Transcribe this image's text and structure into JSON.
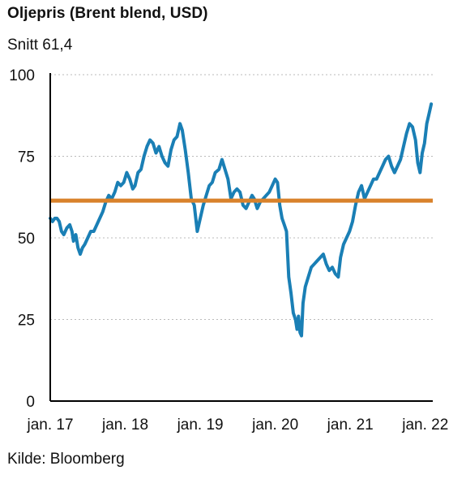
{
  "header": {
    "title": "Oljepris (Brent blend, USD)",
    "subtitle": "Snitt 61,4"
  },
  "footer": {
    "source": "Kilde: Bloomberg"
  },
  "colors": {
    "line": "#1a7fb5",
    "average": "#d9822b",
    "grid": "#bbbbbb",
    "axis": "#000000"
  },
  "chart_data": {
    "type": "line",
    "title": "Oljepris (Brent blend, USD)",
    "subtitle": "Snitt 61,4",
    "xlabel": "",
    "ylabel": "",
    "ylim": [
      0,
      100
    ],
    "xlim": [
      2017.0,
      2022.1
    ],
    "y_ticks": [
      0,
      25,
      50,
      75,
      100
    ],
    "x_ticks": [
      {
        "x": 2017.0,
        "label": "jan. 17"
      },
      {
        "x": 2018.0,
        "label": "jan. 18"
      },
      {
        "x": 2019.0,
        "label": "jan. 19"
      },
      {
        "x": 2020.0,
        "label": "jan. 20"
      },
      {
        "x": 2021.0,
        "label": "jan. 21"
      },
      {
        "x": 2022.0,
        "label": "jan. 22"
      }
    ],
    "grid": "horizontal dotted",
    "average": {
      "value": 61.4
    },
    "series": [
      {
        "points": [
          [
            2017.0,
            56
          ],
          [
            2017.03,
            55
          ],
          [
            2017.06,
            56
          ],
          [
            2017.09,
            56
          ],
          [
            2017.12,
            55
          ],
          [
            2017.15,
            52
          ],
          [
            2017.18,
            51
          ],
          [
            2017.22,
            53
          ],
          [
            2017.26,
            54
          ],
          [
            2017.29,
            52
          ],
          [
            2017.31,
            49
          ],
          [
            2017.34,
            51
          ],
          [
            2017.37,
            47
          ],
          [
            2017.4,
            45
          ],
          [
            2017.43,
            47
          ],
          [
            2017.46,
            48
          ],
          [
            2017.5,
            50
          ],
          [
            2017.54,
            52
          ],
          [
            2017.58,
            52
          ],
          [
            2017.62,
            54
          ],
          [
            2017.66,
            56
          ],
          [
            2017.7,
            58
          ],
          [
            2017.74,
            61
          ],
          [
            2017.78,
            63
          ],
          [
            2017.82,
            62
          ],
          [
            2017.86,
            64
          ],
          [
            2017.9,
            67
          ],
          [
            2017.94,
            66
          ],
          [
            2017.98,
            67
          ],
          [
            2018.02,
            70
          ],
          [
            2018.06,
            68
          ],
          [
            2018.1,
            65
          ],
          [
            2018.13,
            66
          ],
          [
            2018.17,
            70
          ],
          [
            2018.21,
            71
          ],
          [
            2018.25,
            75
          ],
          [
            2018.29,
            78
          ],
          [
            2018.33,
            80
          ],
          [
            2018.37,
            79
          ],
          [
            2018.41,
            76
          ],
          [
            2018.45,
            78
          ],
          [
            2018.49,
            75
          ],
          [
            2018.53,
            73
          ],
          [
            2018.57,
            72
          ],
          [
            2018.61,
            77
          ],
          [
            2018.65,
            80
          ],
          [
            2018.69,
            81
          ],
          [
            2018.73,
            85
          ],
          [
            2018.76,
            83
          ],
          [
            2018.8,
            77
          ],
          [
            2018.84,
            70
          ],
          [
            2018.88,
            62
          ],
          [
            2018.92,
            60
          ],
          [
            2018.96,
            52
          ],
          [
            2019.0,
            56
          ],
          [
            2019.04,
            60
          ],
          [
            2019.08,
            63
          ],
          [
            2019.12,
            66
          ],
          [
            2019.16,
            67
          ],
          [
            2019.2,
            70
          ],
          [
            2019.25,
            71
          ],
          [
            2019.29,
            74
          ],
          [
            2019.33,
            71
          ],
          [
            2019.37,
            68
          ],
          [
            2019.41,
            62
          ],
          [
            2019.45,
            64
          ],
          [
            2019.49,
            65
          ],
          [
            2019.53,
            64
          ],
          [
            2019.57,
            60
          ],
          [
            2019.61,
            59
          ],
          [
            2019.65,
            61
          ],
          [
            2019.69,
            63
          ],
          [
            2019.72,
            62
          ],
          [
            2019.76,
            59
          ],
          [
            2019.8,
            61
          ],
          [
            2019.84,
            62
          ],
          [
            2019.88,
            63
          ],
          [
            2019.92,
            64
          ],
          [
            2019.96,
            66
          ],
          [
            2020.0,
            68
          ],
          [
            2020.03,
            67
          ],
          [
            2020.06,
            60
          ],
          [
            2020.09,
            56
          ],
          [
            2020.12,
            54
          ],
          [
            2020.15,
            52
          ],
          [
            2020.18,
            38
          ],
          [
            2020.21,
            33
          ],
          [
            2020.24,
            27
          ],
          [
            2020.27,
            25
          ],
          [
            2020.29,
            22
          ],
          [
            2020.31,
            26
          ],
          [
            2020.33,
            21
          ],
          [
            2020.35,
            20
          ],
          [
            2020.37,
            30
          ],
          [
            2020.4,
            35
          ],
          [
            2020.44,
            38
          ],
          [
            2020.48,
            41
          ],
          [
            2020.52,
            42
          ],
          [
            2020.56,
            43
          ],
          [
            2020.6,
            44
          ],
          [
            2020.64,
            45
          ],
          [
            2020.68,
            42
          ],
          [
            2020.72,
            40
          ],
          [
            2020.76,
            41
          ],
          [
            2020.8,
            39
          ],
          [
            2020.84,
            38
          ],
          [
            2020.87,
            44
          ],
          [
            2020.91,
            48
          ],
          [
            2020.95,
            50
          ],
          [
            2020.99,
            52
          ],
          [
            2021.03,
            55
          ],
          [
            2021.07,
            60
          ],
          [
            2021.11,
            64
          ],
          [
            2021.15,
            66
          ],
          [
            2021.19,
            62
          ],
          [
            2021.23,
            64
          ],
          [
            2021.27,
            66
          ],
          [
            2021.31,
            68
          ],
          [
            2021.35,
            68
          ],
          [
            2021.39,
            70
          ],
          [
            2021.43,
            72
          ],
          [
            2021.47,
            74
          ],
          [
            2021.51,
            75
          ],
          [
            2021.55,
            72
          ],
          [
            2021.59,
            70
          ],
          [
            2021.63,
            72
          ],
          [
            2021.67,
            74
          ],
          [
            2021.71,
            78
          ],
          [
            2021.75,
            82
          ],
          [
            2021.79,
            85
          ],
          [
            2021.83,
            84
          ],
          [
            2021.87,
            80
          ],
          [
            2021.9,
            73
          ],
          [
            2021.93,
            70
          ],
          [
            2021.96,
            76
          ],
          [
            2021.99,
            79
          ],
          [
            2022.02,
            85
          ],
          [
            2022.05,
            88
          ],
          [
            2022.08,
            91
          ]
        ]
      }
    ]
  }
}
